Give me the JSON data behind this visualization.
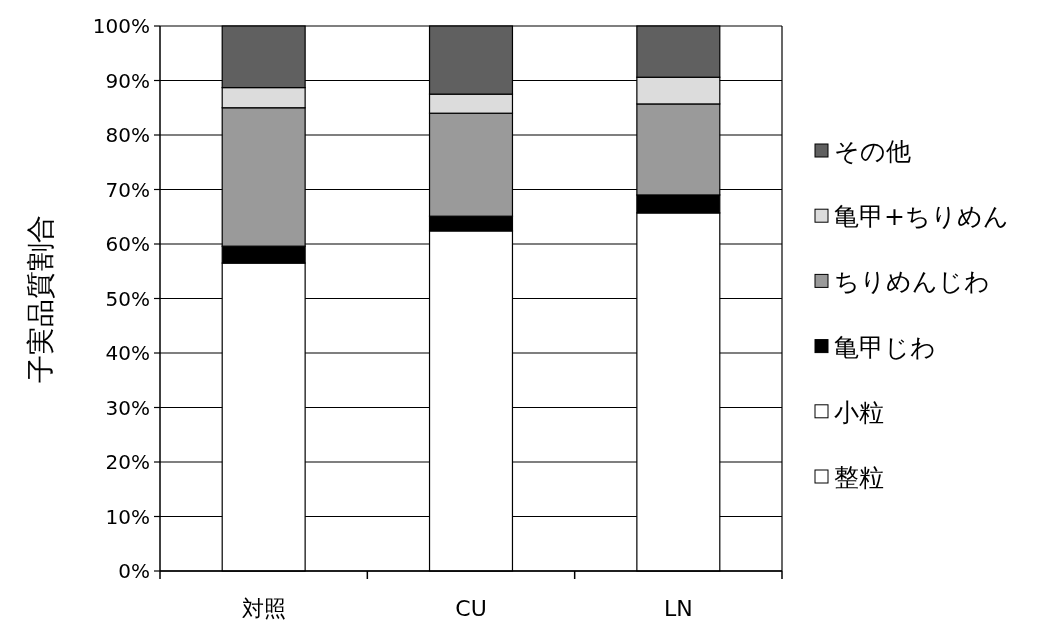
{
  "chart_data": {
    "type": "bar",
    "stacked": true,
    "ylabel": "子実品質割合",
    "categories": [
      "対照",
      "CU",
      "LN"
    ],
    "series": [
      {
        "name": "整粒",
        "color": "#ffffff",
        "values": [
          56.5,
          62.4,
          65.7
        ]
      },
      {
        "name": "小粒",
        "color": "#ffffff",
        "values": [
          0,
          0,
          0
        ]
      },
      {
        "name": "亀甲じわ",
        "color": "#000000",
        "values": [
          3.1,
          2.7,
          3.3
        ]
      },
      {
        "name": "ちりめんじわ",
        "color": "#9a9a9a",
        "values": [
          25.4,
          18.9,
          16.7
        ]
      },
      {
        "name": "亀甲+ちりめん",
        "color": "#dcdcdc",
        "values": [
          3.7,
          3.5,
          4.9
        ]
      },
      {
        "name": "その他",
        "color": "#606060",
        "values": [
          11.3,
          12.5,
          9.4
        ]
      }
    ],
    "ylim": [
      0,
      100
    ],
    "yticks": [
      {
        "value": 0,
        "label": "0%"
      },
      {
        "value": 10,
        "label": "10%"
      },
      {
        "value": 20,
        "label": "20%"
      },
      {
        "value": 30,
        "label": "30%"
      },
      {
        "value": 40,
        "label": "40%"
      },
      {
        "value": 50,
        "label": "50%"
      },
      {
        "value": 60,
        "label": "60%"
      },
      {
        "value": 70,
        "label": "70%"
      },
      {
        "value": 80,
        "label": "80%"
      },
      {
        "value": 90,
        "label": "90%"
      },
      {
        "value": 100,
        "label": "100%"
      }
    ],
    "grid": "y",
    "legend": "right"
  }
}
